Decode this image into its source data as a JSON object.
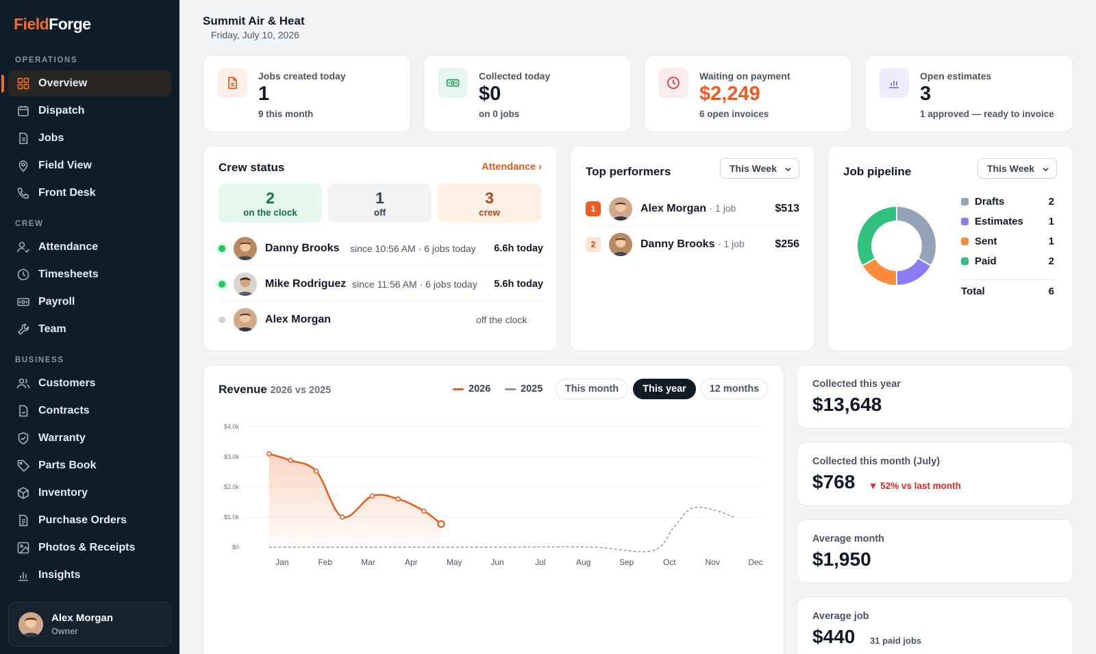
{
  "brand": {
    "part1": "Field",
    "part2": "Forge"
  },
  "sidebar": {
    "sections": {
      "operations": "OPERATIONS",
      "crew": "CREW",
      "business": "BUSINESS"
    },
    "items": [
      {
        "label": "Overview",
        "icon": "grid-icon",
        "active": true
      },
      {
        "label": "Dispatch",
        "icon": "calendar-icon"
      },
      {
        "label": "Jobs",
        "icon": "document-icon"
      },
      {
        "label": "Field View",
        "icon": "map-pin-icon"
      },
      {
        "label": "Front Desk",
        "icon": "phone-icon"
      },
      {
        "label": "Attendance",
        "icon": "user-check-icon"
      },
      {
        "label": "Timesheets",
        "icon": "clock-icon"
      },
      {
        "label": "Payroll",
        "icon": "banknote-icon"
      },
      {
        "label": "Team",
        "icon": "wrench-icon"
      },
      {
        "label": "Customers",
        "icon": "users-icon"
      },
      {
        "label": "Contracts",
        "icon": "contract-icon"
      },
      {
        "label": "Warranty",
        "icon": "shield-check-icon"
      },
      {
        "label": "Parts Book",
        "icon": "tag-icon"
      },
      {
        "label": "Inventory",
        "icon": "box-icon"
      },
      {
        "label": "Purchase Orders",
        "icon": "clipboard-icon"
      },
      {
        "label": "Photos & Receipts",
        "icon": "image-icon"
      },
      {
        "label": "Insights",
        "icon": "bar-chart-icon"
      }
    ],
    "user": {
      "name": "Alex Morgan",
      "role": "Owner"
    }
  },
  "header": {
    "company": "Summit Air & Heat",
    "date": "Friday, July 10, 2026"
  },
  "stats": [
    {
      "label": "Jobs created today",
      "value": "1",
      "sub": "9 this month",
      "icon": "file-icon"
    },
    {
      "label": "Collected today",
      "value": "$0",
      "sub": "on 0 jobs",
      "icon": "cash-icon"
    },
    {
      "label": "Waiting on payment",
      "value": "$2,249",
      "sub": "6 open invoices",
      "icon": "clock-icon"
    },
    {
      "label": "Open estimates",
      "value": "3",
      "sub": "1 approved — ready to invoice",
      "icon": "bar-chart-icon"
    }
  ],
  "crew_status": {
    "title": "Crew status",
    "link": "Attendance ›",
    "summary": [
      {
        "value": "2",
        "label": "on the clock"
      },
      {
        "value": "1",
        "label": "off"
      },
      {
        "value": "3",
        "label": "crew"
      }
    ],
    "rows": [
      {
        "name": "Danny Brooks",
        "info": "since 10:56 AM · 6 jobs today",
        "hours": "6.6h today",
        "status": "on"
      },
      {
        "name": "Mike Rodriguez",
        "info": "since 11:56 AM · 6 jobs today",
        "hours": "5.6h today",
        "status": "on"
      },
      {
        "name": "Alex Morgan",
        "info": "off the clock",
        "hours": "",
        "status": "off"
      }
    ]
  },
  "top_performers": {
    "title": "Top performers",
    "period": "This Week",
    "rows": [
      {
        "rank": "1",
        "name": "Alex Morgan",
        "jobs": "· 1 job",
        "amount": "$513"
      },
      {
        "rank": "2",
        "name": "Danny Brooks",
        "jobs": "· 1 job",
        "amount": "$256"
      }
    ]
  },
  "job_pipeline": {
    "title": "Job pipeline",
    "period": "This Week",
    "total_label": "Total",
    "total": "6",
    "chart_data": {
      "type": "pie",
      "donut": true,
      "categories": [
        "Drafts",
        "Estimates",
        "Sent",
        "Paid"
      ],
      "values": [
        2,
        1,
        1,
        2
      ],
      "colors": [
        "#94a3b8",
        "#8b7cf6",
        "#fb8c3c",
        "#2ec27e"
      ]
    }
  },
  "revenue": {
    "title": "Revenue",
    "subtitle": "2026 vs 2025",
    "legend": [
      "2026",
      "2025"
    ],
    "tabs": [
      "This month",
      "This year",
      "12 months"
    ],
    "active_tab": "This year",
    "chart_data": {
      "type": "line",
      "categories": [
        "Jan",
        "Feb",
        "Mar",
        "Apr",
        "May",
        "Jun",
        "Jul",
        "Aug",
        "Sep",
        "Oct",
        "Nov",
        "Dec"
      ],
      "ytick_labels": [
        "$0",
        "$1.0k",
        "$2.0k",
        "$3.0k",
        "$4.0k"
      ],
      "ylim": [
        0,
        4000
      ],
      "series": [
        {
          "name": "2026",
          "color": "#ea5a1c",
          "x": [
            0.6,
            1.1,
            1.7,
            2.3,
            3.0,
            3.6,
            4.2,
            4.6
          ],
          "values": [
            3100,
            2880,
            2520,
            1000,
            1700,
            1600,
            1200,
            768
          ]
        },
        {
          "name": "2025",
          "color": "#8a95a3",
          "x": [
            0.6,
            2,
            4,
            6,
            8.1,
            9.5,
            10.0,
            10.4,
            10.9,
            11.4
          ],
          "values": [
            0,
            0,
            0,
            0,
            0,
            -120,
            650,
            1280,
            1250,
            1000
          ]
        }
      ]
    }
  },
  "kpis": [
    {
      "label": "Collected this year",
      "value": "$13,648",
      "note": ""
    },
    {
      "label": "Collected this month (July)",
      "value": "$768",
      "note": "▼ 52% vs last month"
    },
    {
      "label": "Average month",
      "value": "$1,950",
      "note": ""
    },
    {
      "label": "Average job",
      "value": "$440",
      "note": "31 paid jobs"
    }
  ]
}
